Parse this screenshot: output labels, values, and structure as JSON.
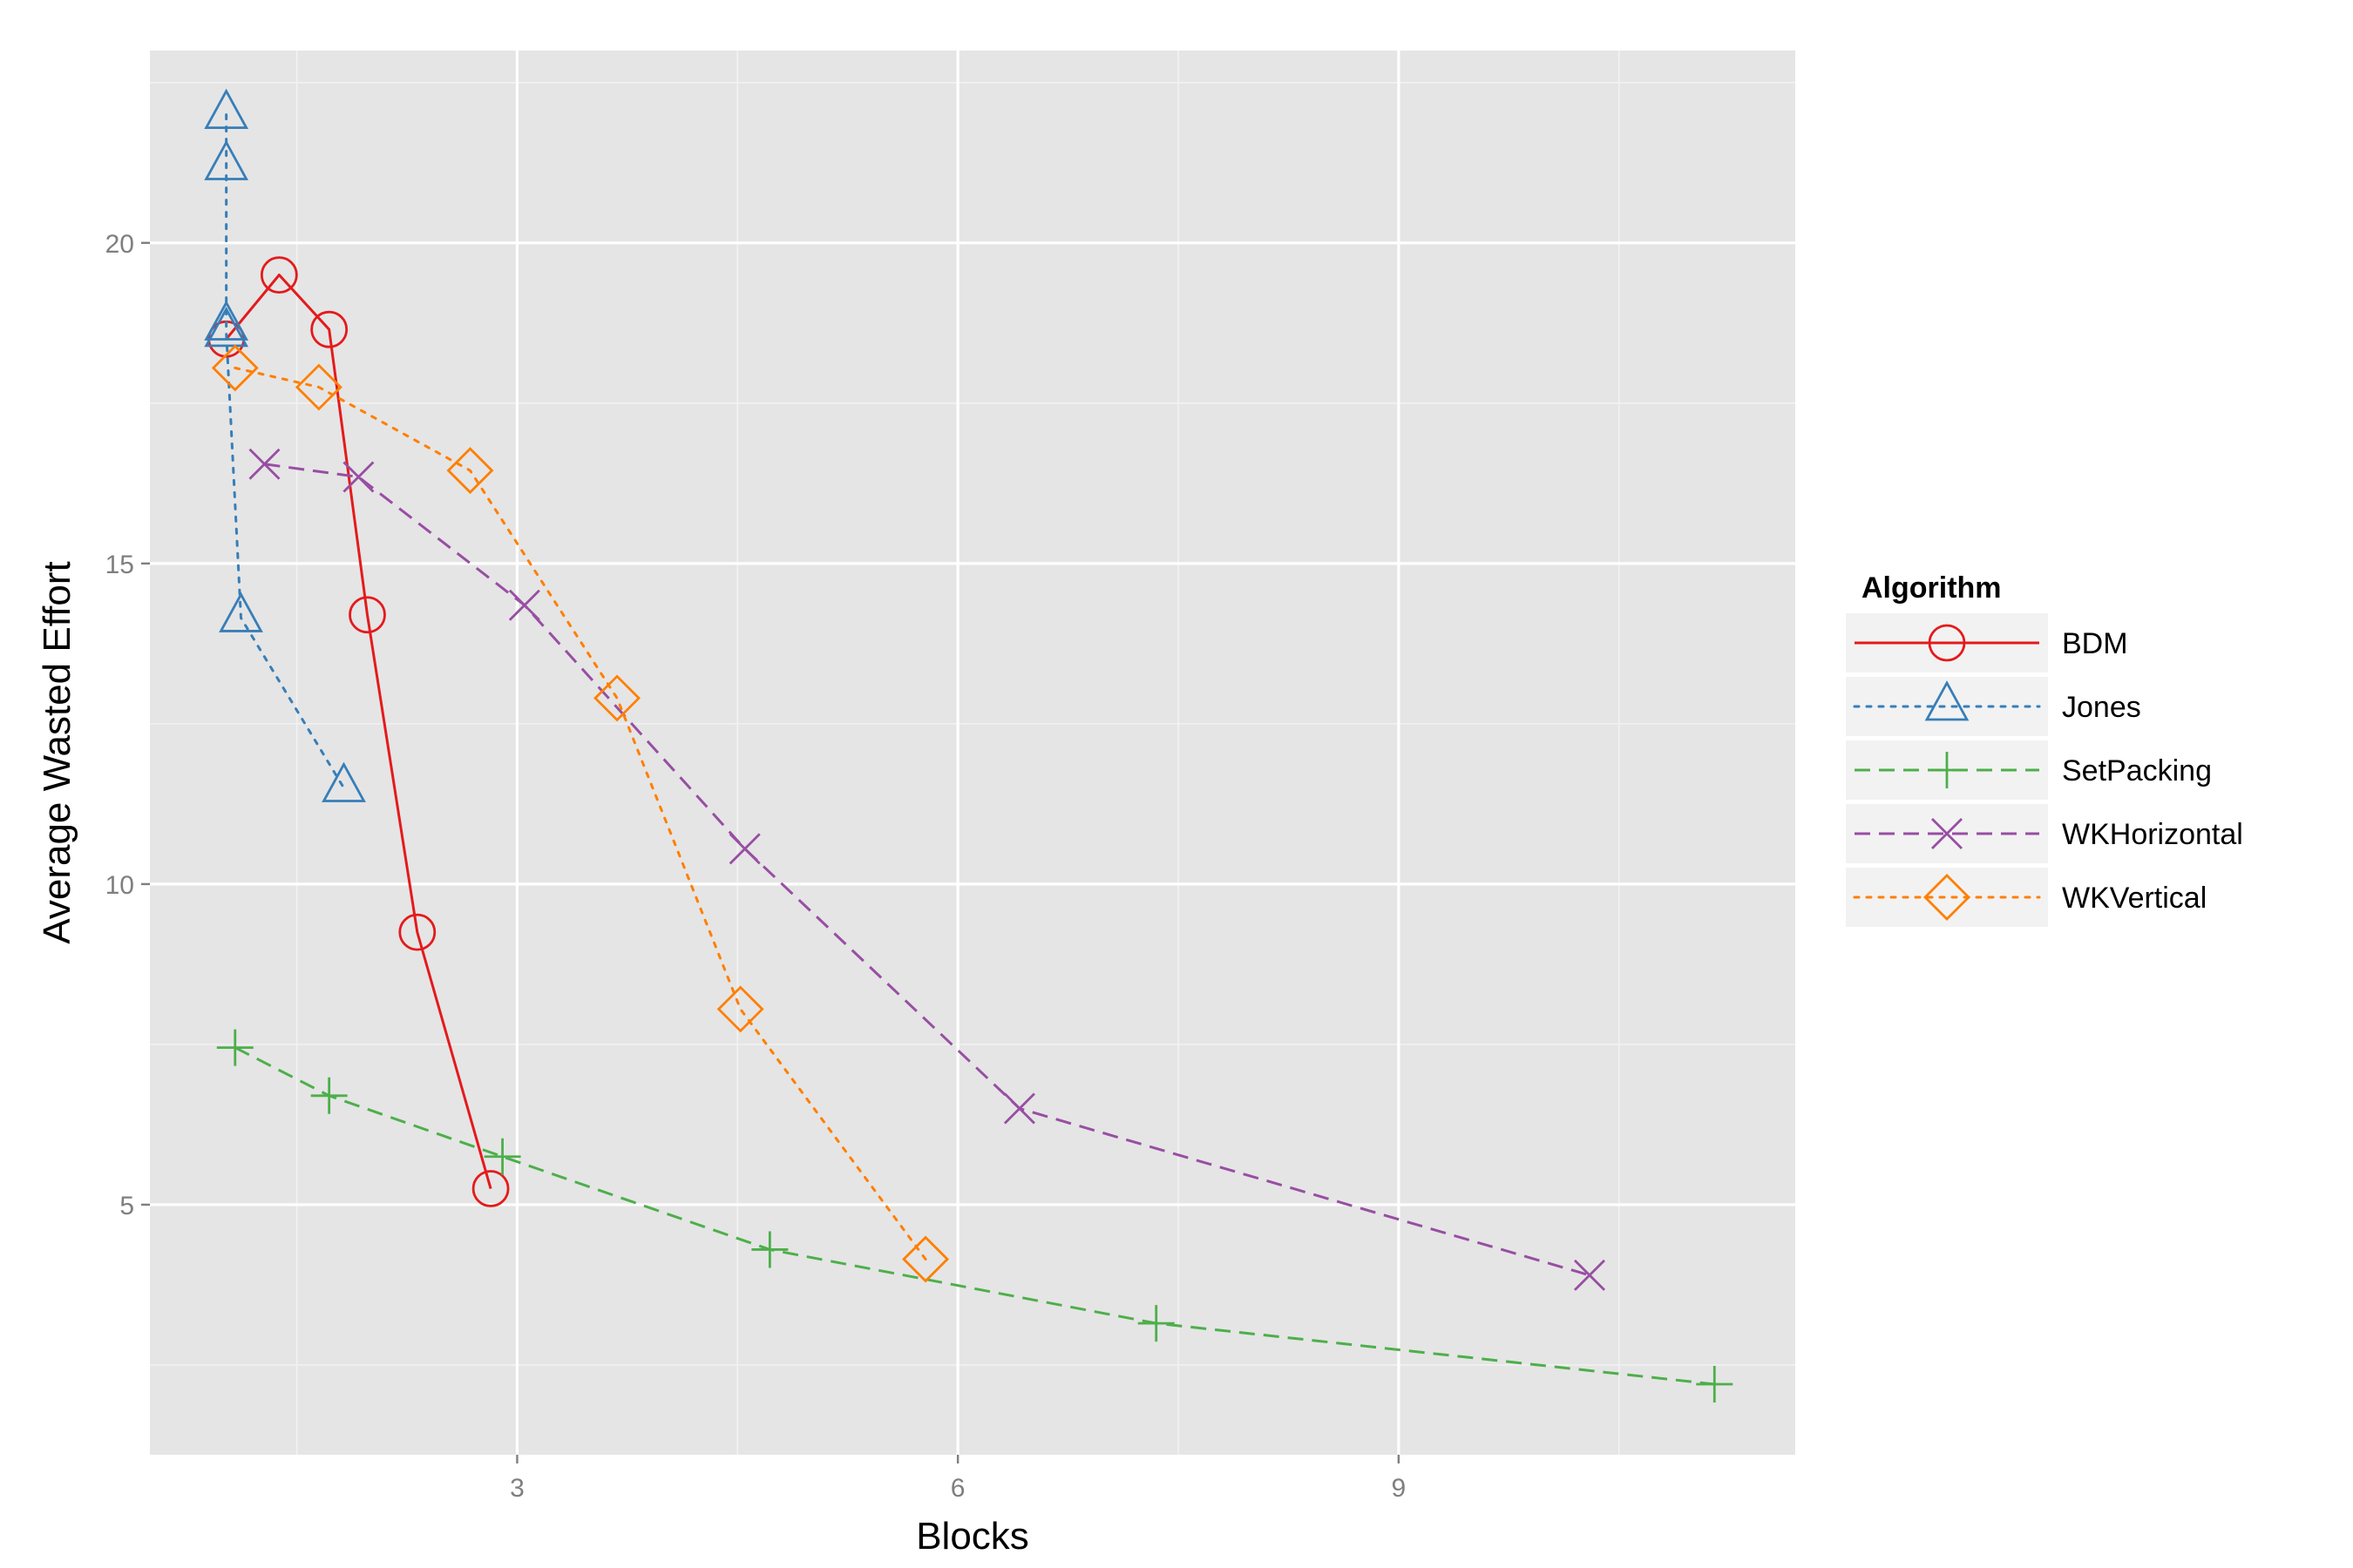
{
  "chart_data": {
    "type": "line",
    "title": "",
    "xlabel": "Blocks",
    "ylabel": "Average Wasted Effort",
    "xlim": [
      0.5,
      11.7
    ],
    "ylim": [
      1.1,
      23.0
    ],
    "xticks": [
      3,
      6,
      9
    ],
    "yticks": [
      5,
      10,
      15,
      20
    ],
    "grid": true,
    "legend": {
      "title": "Algorithm",
      "position": "right"
    },
    "series": [
      {
        "name": "BDM",
        "color": "#e41a1c",
        "dash": "solid",
        "marker": "circle",
        "points": [
          [
            1.02,
            18.5
          ],
          [
            1.38,
            19.5
          ],
          [
            1.72,
            18.65
          ],
          [
            1.98,
            14.2
          ],
          [
            2.32,
            9.25
          ],
          [
            2.82,
            5.25
          ]
        ]
      },
      {
        "name": "Jones",
        "color": "#377eb8",
        "dash": "dotted",
        "marker": "triangle",
        "points": [
          [
            1.02,
            22.0
          ],
          [
            1.02,
            21.2
          ],
          [
            1.02,
            18.7
          ],
          [
            1.02,
            18.6
          ],
          [
            1.12,
            14.15
          ],
          [
            1.82,
            11.5
          ]
        ]
      },
      {
        "name": "SetPacking",
        "color": "#4daf4a",
        "dash": "dashed",
        "marker": "plus",
        "points": [
          [
            1.08,
            7.45
          ],
          [
            1.72,
            6.7
          ],
          [
            2.9,
            5.75
          ],
          [
            4.72,
            4.3
          ],
          [
            7.35,
            3.15
          ],
          [
            11.15,
            2.2
          ]
        ]
      },
      {
        "name": "WKHorizontal",
        "color": "#984ea3",
        "dash": "dashed",
        "marker": "x",
        "points": [
          [
            1.28,
            16.55
          ],
          [
            1.92,
            16.35
          ],
          [
            3.05,
            14.35
          ],
          [
            4.55,
            10.55
          ],
          [
            6.42,
            6.5
          ],
          [
            10.3,
            3.9
          ]
        ]
      },
      {
        "name": "WKVertical",
        "color": "#ff7f00",
        "dash": "dotted",
        "marker": "diamond",
        "points": [
          [
            1.08,
            18.05
          ],
          [
            1.65,
            17.75
          ],
          [
            2.68,
            16.45
          ],
          [
            3.68,
            12.9
          ],
          [
            4.52,
            8.05
          ],
          [
            5.78,
            4.15
          ]
        ]
      }
    ]
  }
}
